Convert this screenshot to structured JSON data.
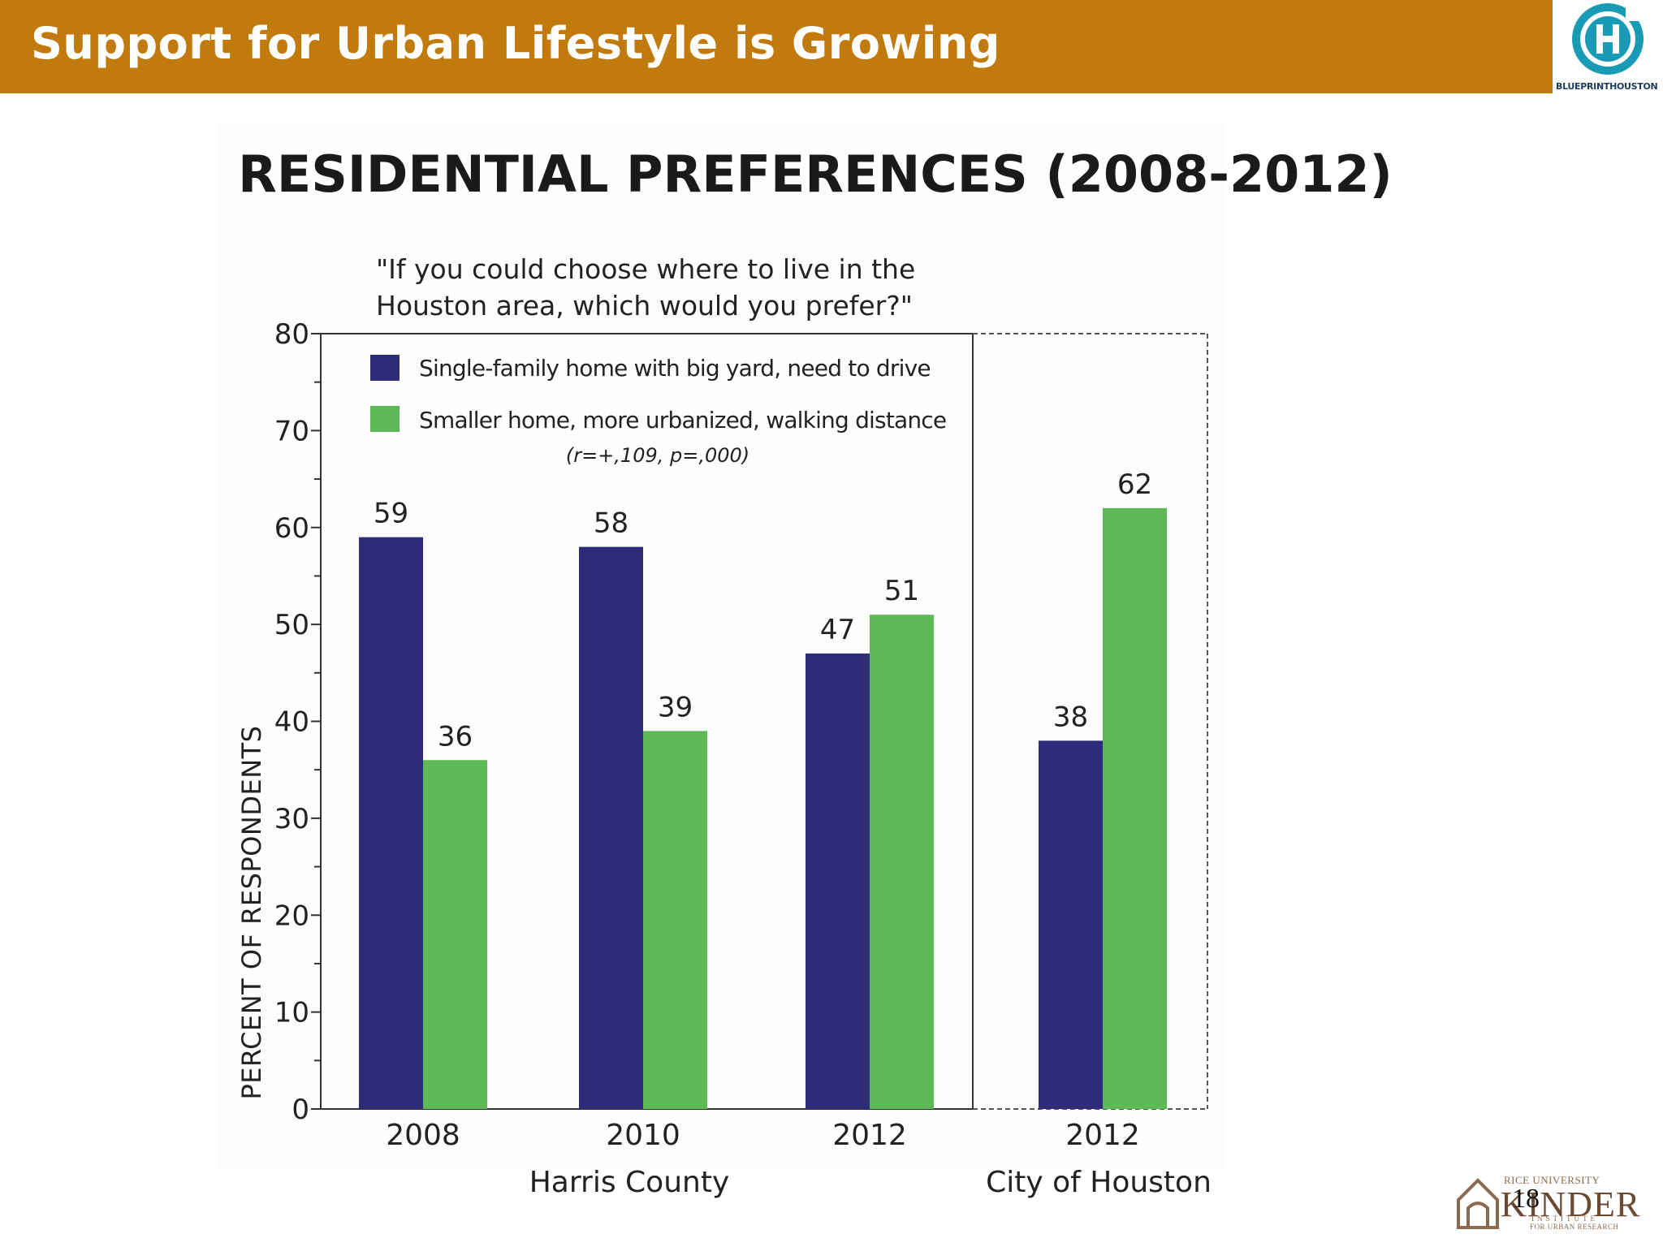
{
  "header": {
    "title": "Support for Urban Lifestyle is Growing",
    "logo_caption": "BLUEPRINTHOUSTON",
    "bg_color": "#c17a0e"
  },
  "footer": {
    "kinder_top": "RICE UNIVERSITY",
    "kinder_main": "KINDER",
    "kinder_sub": "INSTITUTE",
    "kinder_sub2": "FOR URBAN RESEARCH",
    "page_number": "18"
  },
  "chart_data": {
    "type": "bar",
    "title": "RESIDENTIAL PREFERENCES (2008-2012)",
    "subtitle": [
      "\"If you could choose where to live in the",
      "Houston area, which would you prefer?\""
    ],
    "ylabel": "PERCENT OF RESPONDENTS",
    "xlabel": "",
    "ylim": [
      0,
      80
    ],
    "yticks": [
      0,
      10,
      20,
      30,
      40,
      50,
      60,
      70,
      80
    ],
    "categories": [
      "2008",
      "2010",
      "2012",
      "2012"
    ],
    "groups": [
      {
        "label": "Harris County",
        "categories": [
          "2008",
          "2010",
          "2012"
        ]
      },
      {
        "label": "City of Houston",
        "categories": [
          "2012"
        ]
      }
    ],
    "series": [
      {
        "name": "Single-family home with big yard, need to drive",
        "color": "#2e2c7a",
        "values": [
          59,
          58,
          47,
          38
        ]
      },
      {
        "name": "Smaller home, more urbanized, walking distance",
        "color": "#5db855",
        "values": [
          36,
          39,
          51,
          62
        ]
      }
    ],
    "annotation": "(r=+,109, p=,000)",
    "legend_position": "top-left"
  }
}
